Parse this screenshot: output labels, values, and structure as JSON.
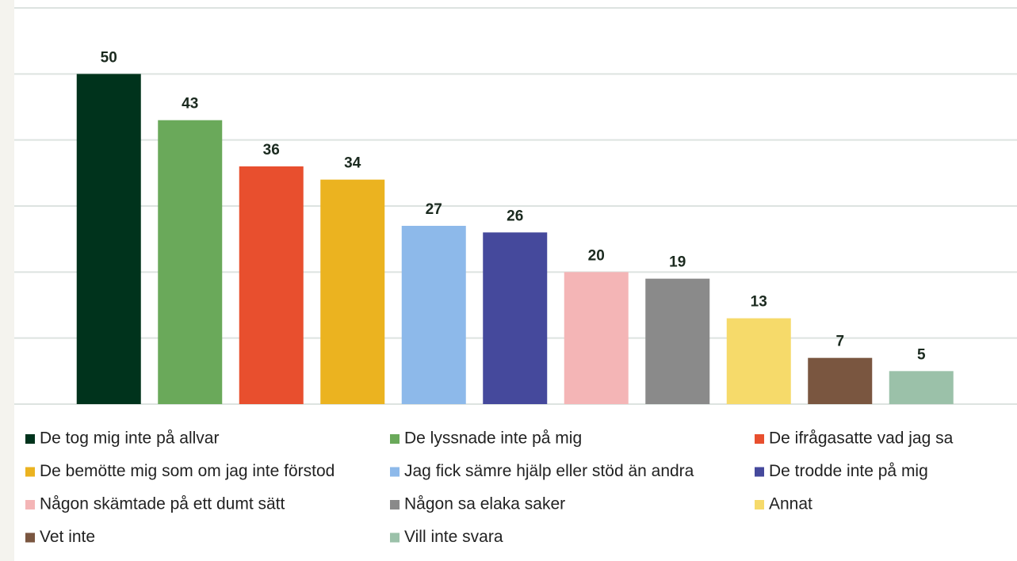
{
  "chart_data": {
    "type": "bar",
    "categories": [
      "De tog mig inte på allvar",
      "De lyssnade inte på mig",
      "De ifrågasatte vad jag sa",
      "De bemötte mig som om jag inte förstod",
      "Jag fick sämre hjälp eller stöd än andra",
      "De trodde inte på mig",
      "Någon skämtade på ett dumt sätt",
      "Någon sa elaka saker",
      "Annat",
      "Vet inte",
      "Vill inte svara"
    ],
    "values": [
      50,
      43,
      36,
      34,
      27,
      26,
      20,
      19,
      13,
      7,
      5
    ],
    "colors": [
      "#00331c",
      "#6aa95a",
      "#e84f2e",
      "#ebb320",
      "#8db9ea",
      "#45499c",
      "#f4b5b6",
      "#8a8a8a",
      "#f6da6a",
      "#7a5640",
      "#9bc1a9"
    ],
    "ylim": [
      0,
      60
    ],
    "yticks": [
      0,
      10,
      20,
      30,
      40,
      50,
      60
    ],
    "grid": true
  }
}
